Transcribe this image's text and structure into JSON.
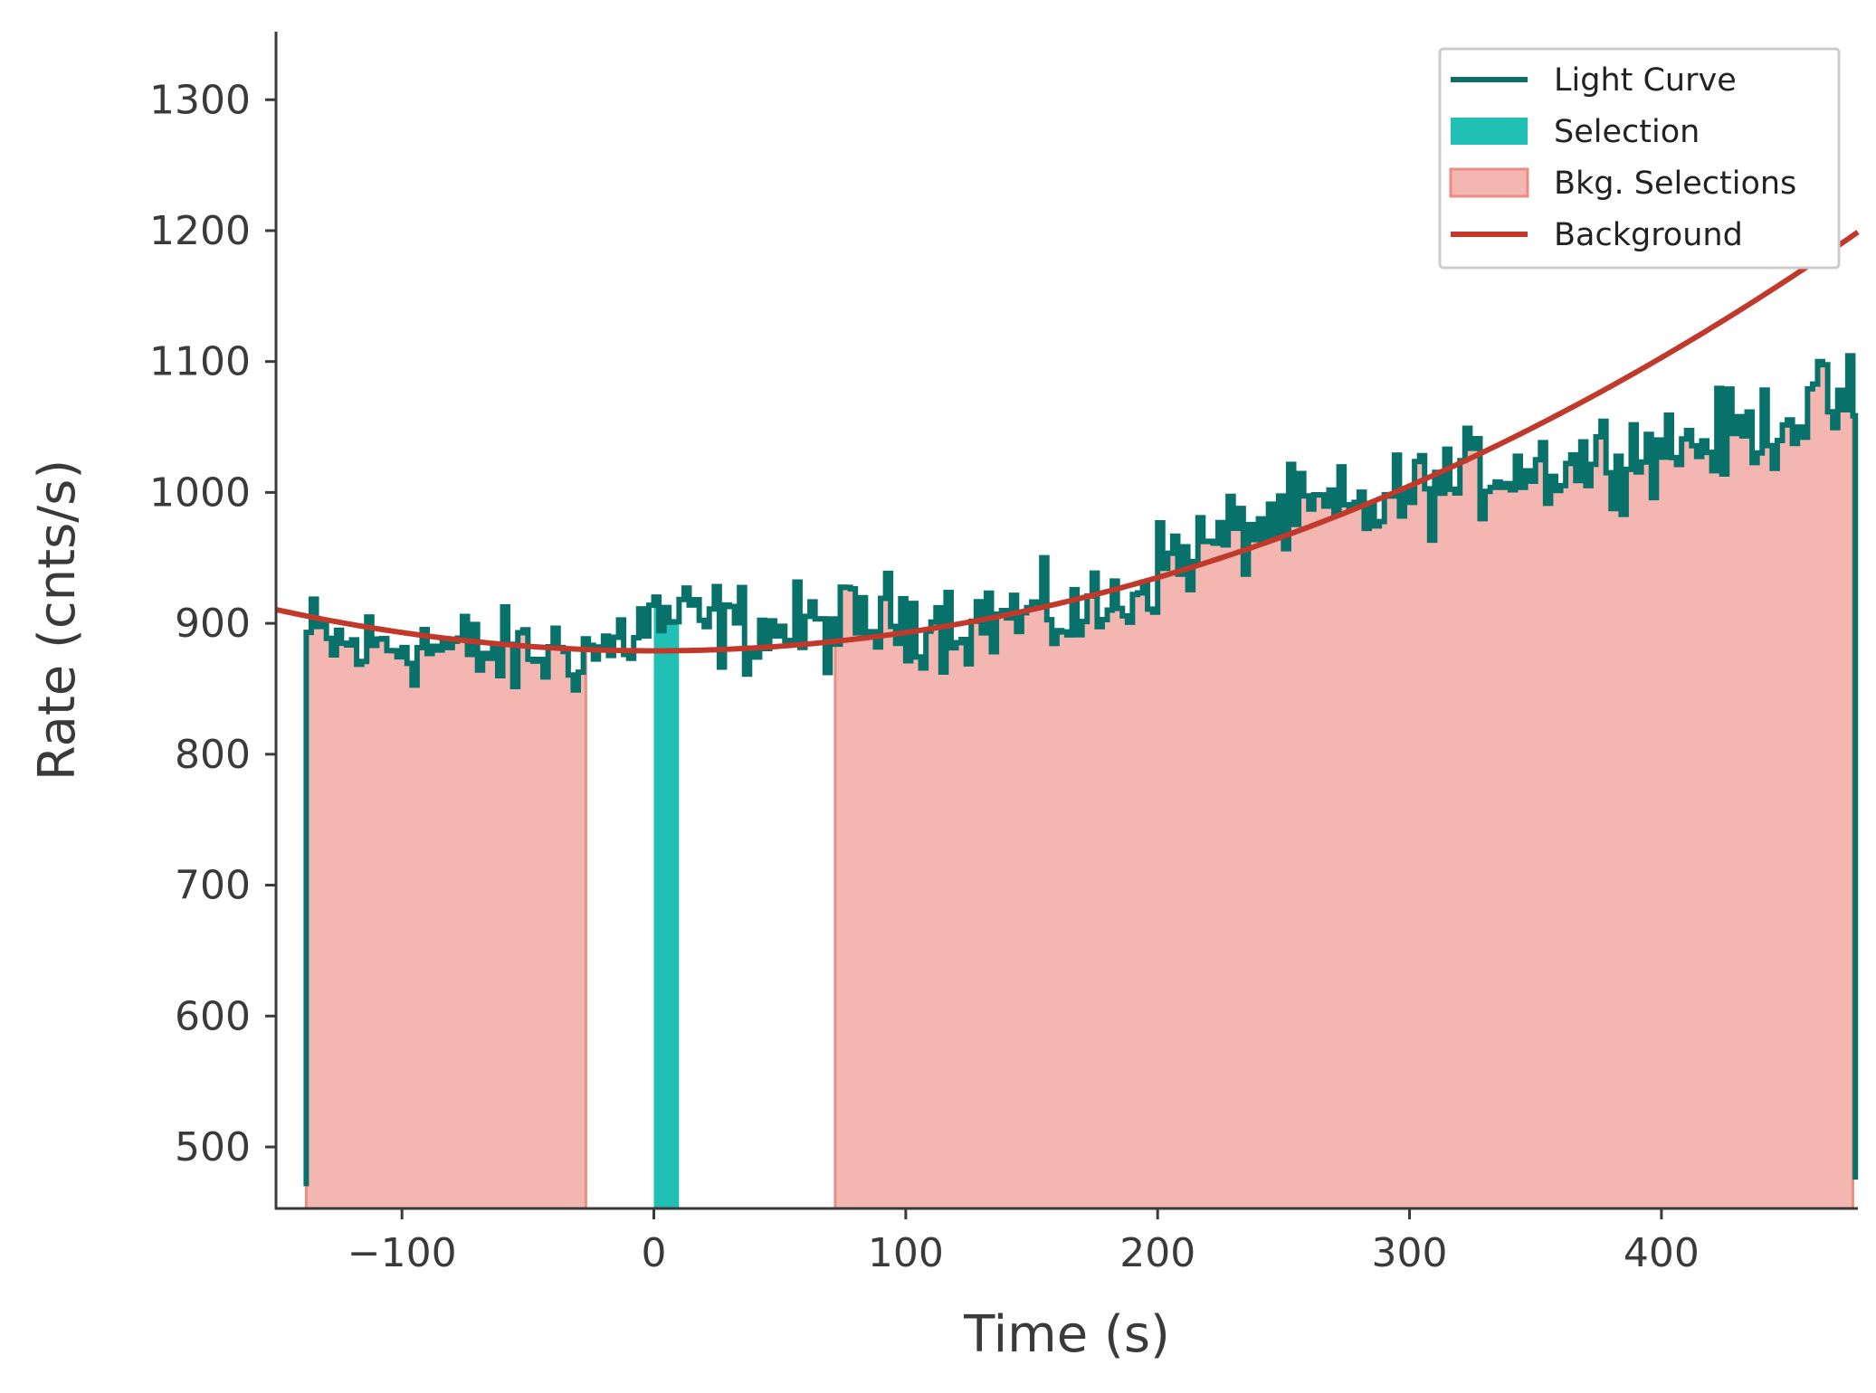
{
  "chart_data": {
    "type": "line",
    "xlabel": "Time (s)",
    "ylabel": "Rate (cnts/s)",
    "xlim": [
      -150,
      478
    ],
    "ylim": [
      453,
      1352
    ],
    "x_ticks": [
      -100,
      0,
      100,
      200,
      300,
      400
    ],
    "x_tick_labels": [
      "−100",
      "0",
      "100",
      "200",
      "300",
      "400"
    ],
    "y_ticks": [
      500,
      600,
      700,
      800,
      900,
      1000,
      1100,
      1200,
      1300
    ],
    "y_tick_labels": [
      "500",
      "600",
      "700",
      "800",
      "900",
      "1000",
      "1100",
      "1200",
      "1300"
    ],
    "grid": false,
    "legend_placement": "top-right",
    "legend": [
      "Light Curve",
      "Selection",
      "Bkg. Selections",
      "Background"
    ],
    "colors": {
      "light_curve": "#08716a",
      "selection": "#20c0b4",
      "bkg_fill": "#f4b6b1",
      "bkg_edge": "#ec8d84",
      "background": "#c0392b",
      "axis": "#3a3a3a"
    },
    "light_curve": {
      "bin_width_s": 2,
      "start_s": -138,
      "end_s": 477,
      "start_rate": 470,
      "end_rate": 475,
      "anchors": [
        [
          -136,
          890
        ],
        [
          -120,
          880
        ],
        [
          -100,
          885
        ],
        [
          -80,
          880
        ],
        [
          -60,
          875
        ],
        [
          -40,
          878
        ],
        [
          -20,
          880
        ],
        [
          0,
          905
        ],
        [
          20,
          900
        ],
        [
          40,
          895
        ],
        [
          60,
          895
        ],
        [
          80,
          900
        ],
        [
          100,
          905
        ],
        [
          120,
          900
        ],
        [
          140,
          905
        ],
        [
          160,
          905
        ],
        [
          180,
          910
        ],
        [
          190,
          925
        ],
        [
          200,
          945
        ],
        [
          220,
          960
        ],
        [
          240,
          975
        ],
        [
          260,
          985
        ],
        [
          280,
          985
        ],
        [
          300,
          1000
        ],
        [
          320,
          1010
        ],
        [
          340,
          1020
        ],
        [
          360,
          1020
        ],
        [
          380,
          1030
        ],
        [
          400,
          1035
        ],
        [
          420,
          1040
        ],
        [
          440,
          1050
        ],
        [
          460,
          1065
        ],
        [
          476,
          1070
        ]
      ],
      "noise_amplitude": 28,
      "max_rate": 1127,
      "min_rate": 803
    },
    "selection": {
      "interval": [
        0,
        10
      ]
    },
    "bkg_selections": [
      {
        "interval": [
          -138,
          -27
        ]
      },
      {
        "interval": [
          72,
          476
        ]
      }
    ],
    "background": {
      "poly_coeffs": [
        879.0,
        0.0,
        0.0014
      ],
      "x_range": [
        -150,
        478
      ]
    }
  }
}
